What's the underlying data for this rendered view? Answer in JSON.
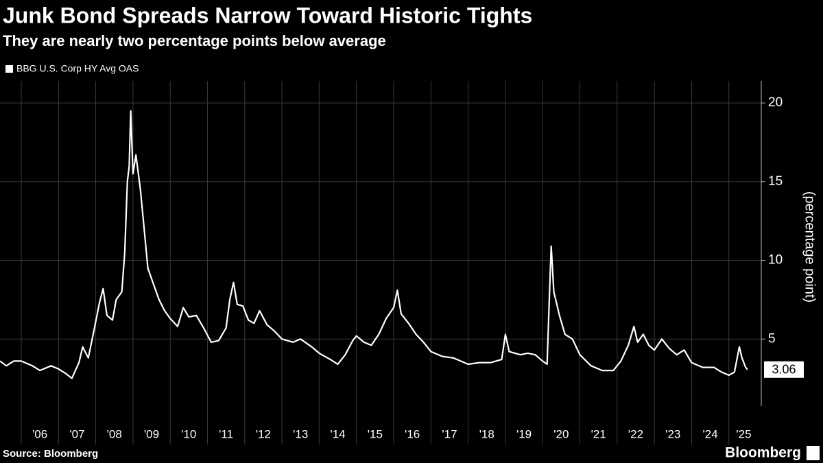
{
  "chart_data": {
    "type": "line",
    "title": "Junk Bond Spreads Narrow Toward Historic Tights",
    "subtitle": "They are nearly two percentage points below average",
    "y_axis_label": "(percentage point)",
    "source": "Source: Bloomberg",
    "brand": "Bloomberg",
    "xlim": [
      2005.43,
      2025.87
    ],
    "ylim": [
      0.74,
      21.4
    ],
    "yticks": [
      5,
      10,
      15,
      20
    ],
    "xgrid": [
      2006,
      2007,
      2008,
      2009,
      2010,
      2011,
      2012,
      2013,
      2014,
      2015,
      2016,
      2017,
      2018,
      2019,
      2020,
      2021,
      2022,
      2023,
      2024,
      2025
    ],
    "xticks": [
      {
        "value": 2006.5,
        "label": "'06"
      },
      {
        "value": 2007.5,
        "label": "'07"
      },
      {
        "value": 2008.5,
        "label": "'08"
      },
      {
        "value": 2009.5,
        "label": "'09"
      },
      {
        "value": 2010.5,
        "label": "'10"
      },
      {
        "value": 2011.5,
        "label": "'11"
      },
      {
        "value": 2012.5,
        "label": "'12"
      },
      {
        "value": 2013.5,
        "label": "'13"
      },
      {
        "value": 2014.5,
        "label": "'14"
      },
      {
        "value": 2015.5,
        "label": "'15"
      },
      {
        "value": 2016.5,
        "label": "'16"
      },
      {
        "value": 2017.5,
        "label": "'17"
      },
      {
        "value": 2018.5,
        "label": "'18"
      },
      {
        "value": 2019.5,
        "label": "'19"
      },
      {
        "value": 2020.5,
        "label": "'20"
      },
      {
        "value": 2021.5,
        "label": "'21"
      },
      {
        "value": 2022.5,
        "label": "'22"
      },
      {
        "value": 2023.5,
        "label": "'23"
      },
      {
        "value": 2024.5,
        "label": "'24"
      },
      {
        "value": 2025.4,
        "label": "'25"
      }
    ],
    "grid": true,
    "x": [
      2005.43,
      2005.6,
      2005.8,
      2006.0,
      2006.3,
      2006.5,
      2006.8,
      2007.0,
      2007.2,
      2007.36,
      2007.55,
      2007.65,
      2007.8,
      2007.95,
      2008.1,
      2008.2,
      2008.3,
      2008.45,
      2008.55,
      2008.7,
      2008.78,
      2008.85,
      2008.9,
      2008.94,
      2009.0,
      2009.08,
      2009.2,
      2009.3,
      2009.4,
      2009.55,
      2009.7,
      2009.85,
      2010.0,
      2010.2,
      2010.35,
      2010.5,
      2010.7,
      2010.9,
      2011.1,
      2011.3,
      2011.5,
      2011.6,
      2011.7,
      2011.8,
      2011.95,
      2012.1,
      2012.25,
      2012.4,
      2012.6,
      2012.8,
      2013.0,
      2013.3,
      2013.5,
      2013.8,
      2014.0,
      2014.3,
      2014.5,
      2014.7,
      2014.9,
      2015.0,
      2015.2,
      2015.4,
      2015.6,
      2015.8,
      2016.0,
      2016.1,
      2016.2,
      2016.4,
      2016.6,
      2016.8,
      2017.0,
      2017.3,
      2017.6,
      2017.8,
      2018.0,
      2018.3,
      2018.6,
      2018.9,
      2019.0,
      2019.1,
      2019.4,
      2019.6,
      2019.8,
      2020.0,
      2020.12,
      2020.2,
      2020.23,
      2020.3,
      2020.45,
      2020.6,
      2020.8,
      2021.0,
      2021.3,
      2021.6,
      2021.9,
      2022.1,
      2022.3,
      2022.45,
      2022.55,
      2022.7,
      2022.85,
      2023.0,
      2023.2,
      2023.4,
      2023.6,
      2023.8,
      2024.0,
      2024.3,
      2024.6,
      2024.8,
      2025.0,
      2025.15,
      2025.28,
      2025.35,
      2025.45,
      2025.5
    ],
    "series": [
      {
        "name": "BBG U.S. Corp HY Avg OAS",
        "color": "#ffffff",
        "values": [
          3.6,
          3.3,
          3.6,
          3.6,
          3.3,
          3.0,
          3.3,
          3.1,
          2.8,
          2.5,
          3.5,
          4.5,
          3.8,
          5.5,
          7.3,
          8.2,
          6.5,
          6.2,
          7.5,
          8.0,
          10.5,
          15.0,
          16.0,
          19.5,
          15.5,
          16.7,
          14.5,
          12.0,
          9.5,
          8.5,
          7.5,
          6.8,
          6.3,
          5.8,
          7.0,
          6.4,
          6.5,
          5.7,
          4.8,
          4.9,
          5.7,
          7.5,
          8.6,
          7.2,
          7.1,
          6.2,
          6.0,
          6.8,
          5.9,
          5.5,
          5.0,
          4.8,
          5.0,
          4.5,
          4.1,
          3.7,
          3.4,
          4.0,
          4.9,
          5.2,
          4.8,
          4.6,
          5.3,
          6.3,
          7.0,
          8.1,
          6.6,
          6.0,
          5.3,
          4.8,
          4.2,
          3.9,
          3.8,
          3.6,
          3.4,
          3.5,
          3.5,
          3.7,
          5.3,
          4.2,
          4.0,
          4.1,
          4.0,
          3.6,
          3.4,
          9.0,
          10.9,
          8.0,
          6.5,
          5.3,
          5.0,
          4.0,
          3.3,
          3.0,
          3.0,
          3.6,
          4.6,
          5.8,
          4.8,
          5.3,
          4.6,
          4.3,
          5.0,
          4.4,
          4.0,
          4.3,
          3.5,
          3.2,
          3.2,
          2.9,
          2.7,
          2.9,
          4.5,
          3.8,
          3.2,
          3.06
        ]
      }
    ]
  }
}
